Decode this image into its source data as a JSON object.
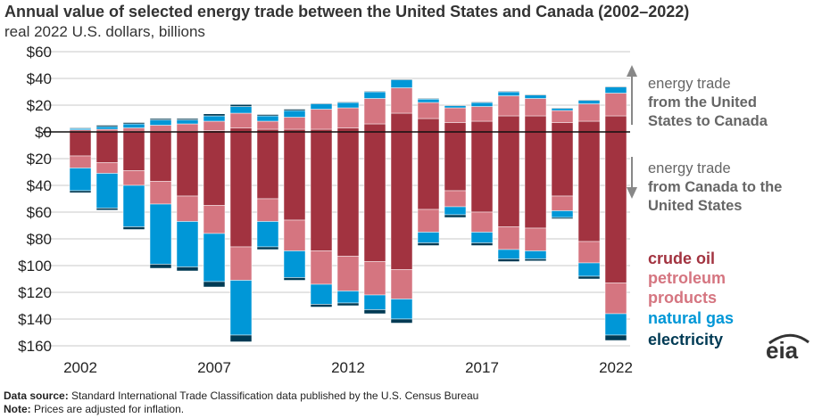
{
  "chart_data": {
    "type": "bar",
    "stacked": true,
    "title": "Annual value of selected energy trade between the United States and Canada (2002–2022)",
    "subtitle": "real 2022 U.S. dollars, billions",
    "ylim": [
      -160,
      60
    ],
    "yticks": [
      60,
      40,
      20,
      0,
      -20,
      -40,
      -60,
      -80,
      -100,
      -120,
      -140,
      -160
    ],
    "ytick_labels": [
      "$60",
      "$40",
      "$20",
      "$0",
      "$20",
      "$40",
      "$60",
      "$80",
      "$100",
      "$120",
      "$140",
      "$160"
    ],
    "categories": [
      2002,
      2003,
      2004,
      2005,
      2006,
      2007,
      2008,
      2009,
      2010,
      2011,
      2012,
      2013,
      2014,
      2015,
      2016,
      2017,
      2018,
      2019,
      2020,
      2021,
      2022
    ],
    "xtick_labels": [
      "2002",
      "2007",
      "2012",
      "2017",
      "2022"
    ],
    "colors": {
      "crude oil": "#a23340",
      "petroleum products": "#d57580",
      "natural gas": "#0097d7",
      "electricity": "#003a54"
    },
    "exports_to_canada": [
      {
        "name": "crude oil",
        "values": [
          0,
          0,
          0,
          0,
          0,
          1,
          3,
          2,
          2,
          2,
          3,
          6,
          14,
          10,
          7,
          8,
          12,
          12,
          7,
          8,
          12
        ]
      },
      {
        "name": "petroleum products",
        "values": [
          1.5,
          2,
          3,
          5,
          6,
          7,
          11,
          6,
          9,
          15,
          15,
          19,
          19,
          12,
          11,
          11,
          15,
          13,
          9,
          13,
          17
        ]
      },
      {
        "name": "natural gas",
        "values": [
          1,
          2,
          3,
          4,
          3,
          4,
          5,
          4,
          5,
          4,
          4,
          5,
          6,
          2.5,
          1.5,
          3,
          3,
          2.5,
          1.5,
          2.5,
          4.5
        ]
      },
      {
        "name": "electricity",
        "values": [
          0.5,
          1,
          1,
          1,
          1,
          1.5,
          1.5,
          1,
          1,
          0.5,
          0.5,
          0.5,
          0.5,
          0.5,
          0.5,
          0.5,
          0.5,
          0.5,
          0.5,
          0.5,
          0.5
        ]
      }
    ],
    "imports_from_canada": [
      {
        "name": "crude oil",
        "values": [
          18,
          23,
          29,
          37,
          48,
          55,
          86,
          50,
          66,
          89,
          93,
          97,
          103,
          58,
          44,
          60,
          71,
          72,
          48,
          82,
          113
        ]
      },
      {
        "name": "petroleum products",
        "values": [
          9,
          8,
          11,
          17,
          19,
          21,
          25,
          17,
          23,
          25,
          26,
          25,
          22,
          17,
          12,
          15,
          17,
          17,
          11,
          16,
          23
        ]
      },
      {
        "name": "natural gas",
        "values": [
          17,
          26,
          31,
          45,
          34,
          36,
          41,
          19,
          20,
          15,
          9,
          11,
          15,
          8,
          6,
          8,
          7,
          6,
          5,
          10,
          16
        ]
      },
      {
        "name": "electricity",
        "values": [
          1.5,
          1.5,
          2,
          3,
          3,
          4,
          5,
          2,
          2,
          2,
          2,
          3,
          3,
          2,
          2,
          2,
          2,
          1.5,
          1,
          2,
          4
        ]
      }
    ]
  },
  "annotations": {
    "up_line1": "energy trade",
    "up_line2": "from the United",
    "up_line3": "States to Canada",
    "down_line1": "energy trade",
    "down_line2": "from Canada to the",
    "down_line3": "United States"
  },
  "legend": {
    "crude": "crude oil",
    "petro1": "petroleum",
    "petro2": "products",
    "gas": "natural gas",
    "elec": "electricity"
  },
  "footer": {
    "source_label": "Data source:",
    "source_text": " Standard International Trade Classification data published by the U.S. Census Bureau",
    "note_label": "Note:",
    "note_text": " Prices are adjusted for inflation."
  },
  "logo": "eia"
}
